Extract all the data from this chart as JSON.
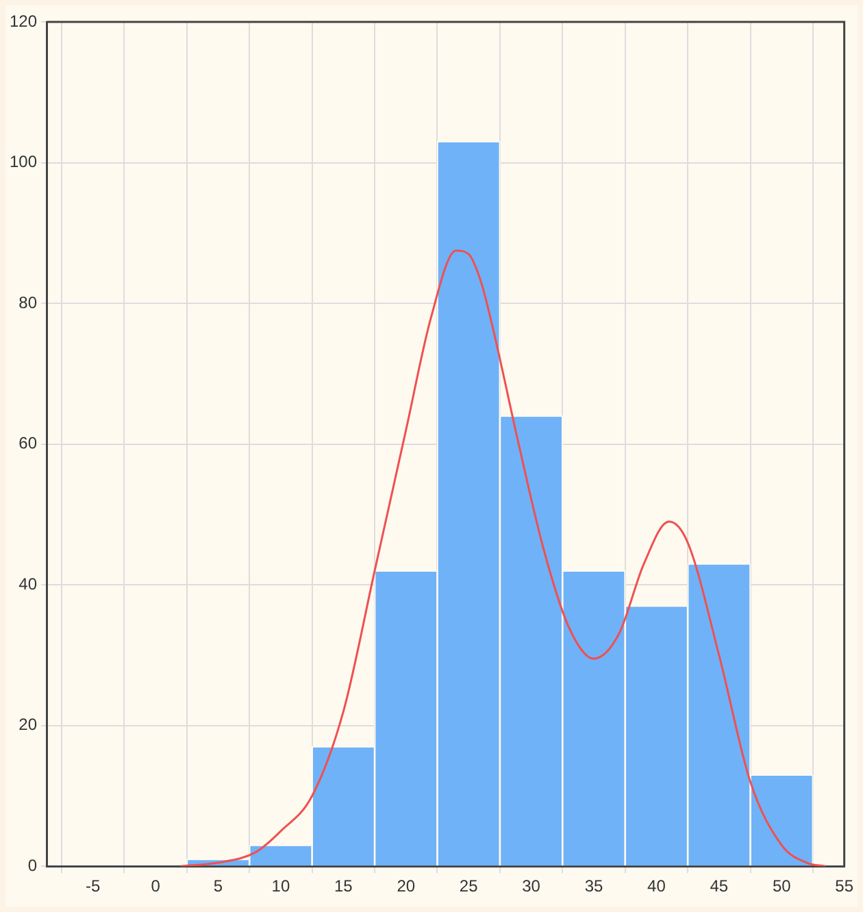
{
  "chart_data": {
    "type": "histogram",
    "bins": [
      2.5,
      7.5,
      12.5,
      17.5,
      22.5,
      27.5,
      32.5,
      37.5,
      42.5,
      47.5,
      52.5
    ],
    "values": [
      1,
      3,
      17,
      42,
      103,
      64,
      42,
      37,
      43,
      13
    ],
    "color": "#6fb2f8",
    "series": [
      {
        "type": "line",
        "color": "#f05050",
        "x": [
          2,
          5,
          8,
          10,
          12.5,
          15,
          17.5,
          20,
          22,
          24,
          25,
          26,
          27,
          29,
          31,
          33,
          35,
          37,
          39,
          41,
          42.5,
          45,
          47.5,
          50,
          52,
          53.5
        ],
        "values": [
          0,
          0.5,
          2,
          5,
          10,
          22,
          42,
          62,
          78,
          87.5,
          87,
          83,
          76,
          60,
          45,
          34,
          29.5,
          33,
          43,
          49,
          46,
          30,
          12,
          3,
          0.5,
          0
        ]
      }
    ],
    "xlim": [
      -8.7,
      55
    ],
    "xticks": [
      -5,
      0,
      5,
      10,
      15,
      20,
      25,
      30,
      35,
      40,
      45,
      50,
      55
    ],
    "ylim": [
      0,
      120
    ],
    "yticks": [
      0,
      20,
      40,
      60,
      80,
      100,
      120
    ],
    "grid": true
  }
}
